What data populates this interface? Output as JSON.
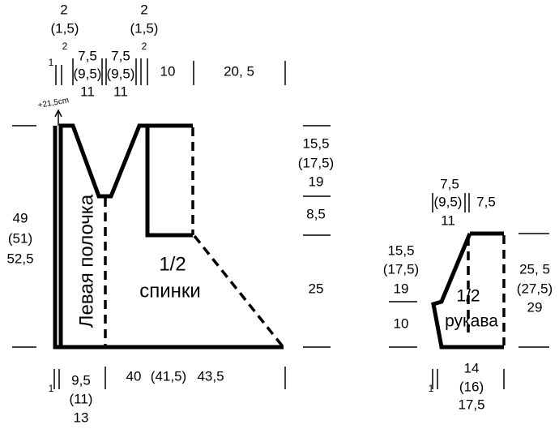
{
  "top": [
    "2",
    "(1,5)",
    "2",
    "1",
    "7,5",
    "(9,5)",
    "11",
    "7,5",
    "(9,5)",
    "11",
    "2",
    "(1,5)",
    "2",
    "10",
    "20, 5",
    "+21,5cm"
  ],
  "left": [
    "49",
    "(51)",
    "52,5"
  ],
  "right": [
    "15,5",
    "(17,5)",
    "19",
    "8,5",
    "25"
  ],
  "front_label": "Левая полочка",
  "back_label": [
    "1/2",
    "спинки"
  ],
  "bottom": [
    "1",
    "9,5",
    "(11)",
    "13",
    "40",
    "(41,5)",
    "43,5"
  ],
  "sleeve": {
    "top": [
      "7,5",
      "(9,5)",
      "11",
      "7,5"
    ],
    "left": [
      "15,5",
      "(17,5)",
      "19",
      "10"
    ],
    "label": [
      "1/2",
      "рукава"
    ],
    "right": [
      "25, 5",
      "(27,5)",
      "29"
    ],
    "bottom": [
      "14",
      "(16)",
      "17,5",
      "1"
    ]
  }
}
